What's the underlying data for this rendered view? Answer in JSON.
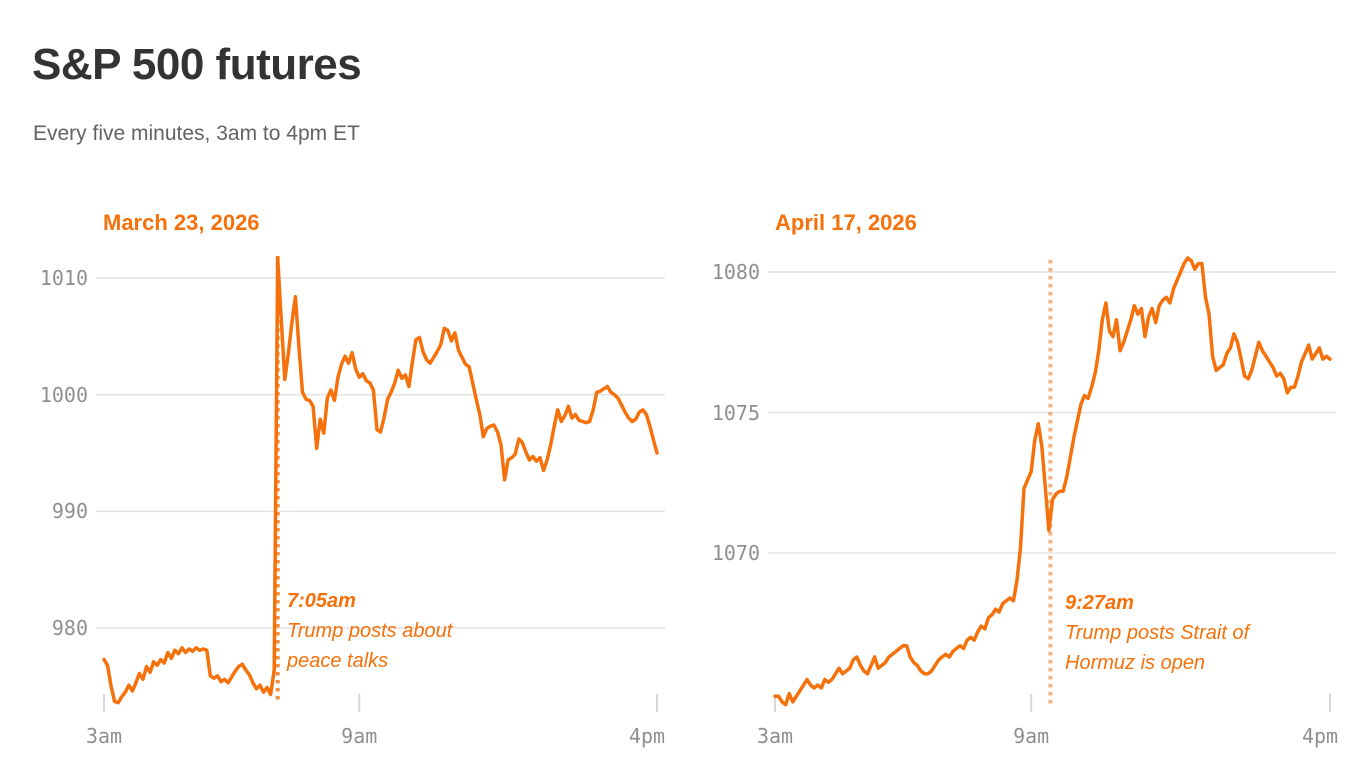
{
  "header": {
    "title": "S&P 500 futures",
    "subtitle": "Every five minutes, 3am to 4pm ET"
  },
  "colors": {
    "line": "#f5710b",
    "accent_text": "#f5710b",
    "axis_label": "#8f8f8f",
    "gridline": "#e4e4e4",
    "tick": "#d8d8d8",
    "title": "#333336",
    "subtitle": "#636363"
  },
  "chart_data": [
    {
      "type": "line",
      "title": "March 23, 2026",
      "x_start": "3am",
      "x_end": "4pm",
      "interval_minutes": 5,
      "ylim": [
        973,
        1013
      ],
      "y_ticks": [
        1010,
        1000,
        990,
        980
      ],
      "x_ticks": [
        {
          "label": "3am",
          "hours": 0
        },
        {
          "label": "9am",
          "hours": 6
        },
        {
          "label": "4pm",
          "hours": 13
        }
      ],
      "annotation": {
        "time": "7:05am",
        "lines": [
          "Trump posts about",
          "peace talks"
        ],
        "hours_from_start": 4.0833
      },
      "values": [
        977.3,
        976.8,
        975.0,
        973.7,
        973.6,
        974.1,
        974.5,
        975.1,
        974.6,
        975.3,
        976.1,
        975.6,
        976.7,
        976.2,
        977.1,
        976.8,
        977.3,
        977.0,
        977.9,
        977.4,
        978.1,
        977.8,
        978.3,
        977.9,
        978.2,
        978.0,
        978.3,
        978.1,
        978.2,
        978.1,
        975.9,
        975.7,
        975.9,
        975.4,
        975.6,
        975.3,
        975.8,
        976.3,
        976.7,
        976.9,
        976.4,
        976.0,
        975.3,
        974.8,
        975.1,
        974.5,
        974.9,
        974.3,
        976.4,
        1011.7,
        1006.5,
        1001.3,
        1003.5,
        1006.2,
        1008.4,
        1004.0,
        1000.2,
        999.6,
        999.5,
        999.0,
        995.4,
        997.9,
        996.7,
        999.7,
        1000.4,
        999.5,
        1001.5,
        1002.6,
        1003.3,
        1002.7,
        1003.6,
        1002.2,
        1001.5,
        1001.8,
        1001.2,
        1001.0,
        1000.4,
        997.0,
        996.8,
        998.0,
        999.6,
        1000.2,
        1001.0,
        1002.1,
        1001.4,
        1001.7,
        1000.7,
        1002.8,
        1004.7,
        1004.9,
        1003.7,
        1003.0,
        1002.7,
        1003.2,
        1003.7,
        1004.3,
        1005.7,
        1005.5,
        1004.6,
        1005.3,
        1003.8,
        1003.2,
        1002.6,
        1002.4,
        1001.0,
        999.6,
        998.3,
        996.4,
        997.1,
        997.3,
        997.4,
        996.8,
        995.7,
        992.7,
        994.4,
        994.6,
        994.9,
        996.2,
        995.9,
        995.1,
        994.4,
        994.7,
        994.3,
        994.6,
        993.5,
        994.4,
        995.7,
        997.3,
        998.7,
        997.7,
        998.2,
        999.0,
        998.0,
        998.3,
        997.8,
        997.7,
        997.6,
        997.7,
        998.7,
        1000.2,
        1000.3,
        1000.5,
        1000.7,
        1000.2,
        1000.0,
        999.7,
        999.1,
        998.5,
        998.0,
        997.7,
        997.9,
        998.5,
        998.7,
        998.3,
        997.3,
        996.1,
        995.0
      ]
    },
    {
      "type": "line",
      "title": "April 17, 2026",
      "x_start": "3am",
      "x_end": "4pm",
      "interval_minutes": 5,
      "ylim": [
        1064.5,
        1081
      ],
      "y_ticks": [
        1080,
        1075,
        1070
      ],
      "x_ticks": [
        {
          "label": "3am",
          "hours": 0
        },
        {
          "label": "9am",
          "hours": 6
        },
        {
          "label": "4pm",
          "hours": 13
        }
      ],
      "annotation": {
        "time": "9:27am",
        "lines": [
          "Trump posts Strait of",
          "Hormuz is open"
        ],
        "hours_from_start": 6.45
      },
      "values": [
        1064.9,
        1064.9,
        1064.7,
        1064.6,
        1065.0,
        1064.7,
        1064.9,
        1065.1,
        1065.3,
        1065.5,
        1065.3,
        1065.2,
        1065.3,
        1065.2,
        1065.5,
        1065.4,
        1065.5,
        1065.7,
        1065.9,
        1065.7,
        1065.8,
        1065.9,
        1066.2,
        1066.3,
        1066.0,
        1065.8,
        1065.7,
        1066.0,
        1066.3,
        1065.9,
        1066.0,
        1066.1,
        1066.3,
        1066.4,
        1066.5,
        1066.6,
        1066.7,
        1066.7,
        1066.3,
        1066.1,
        1066.0,
        1065.8,
        1065.7,
        1065.7,
        1065.8,
        1066.0,
        1066.2,
        1066.3,
        1066.4,
        1066.3,
        1066.5,
        1066.6,
        1066.7,
        1066.6,
        1066.9,
        1067.0,
        1066.9,
        1067.2,
        1067.4,
        1067.3,
        1067.7,
        1067.8,
        1068.0,
        1067.9,
        1068.2,
        1068.3,
        1068.4,
        1068.3,
        1069.0,
        1070.2,
        1072.3,
        1072.6,
        1072.9,
        1074.0,
        1074.6,
        1073.8,
        1072.3,
        1070.8,
        1071.9,
        1072.1,
        1072.2,
        1072.2,
        1072.7,
        1073.4,
        1074.1,
        1074.7,
        1075.3,
        1075.6,
        1075.5,
        1075.9,
        1076.4,
        1077.2,
        1078.3,
        1078.9,
        1077.9,
        1077.7,
        1078.3,
        1077.2,
        1077.5,
        1077.9,
        1078.3,
        1078.8,
        1078.5,
        1078.7,
        1077.7,
        1078.4,
        1078.7,
        1078.2,
        1078.8,
        1079.0,
        1079.1,
        1078.9,
        1079.4,
        1079.7,
        1080.0,
        1080.3,
        1080.5,
        1080.4,
        1080.1,
        1080.3,
        1080.3,
        1079.1,
        1078.5,
        1077.0,
        1076.5,
        1076.6,
        1076.7,
        1077.1,
        1077.3,
        1077.8,
        1077.5,
        1076.9,
        1076.3,
        1076.2,
        1076.5,
        1077.0,
        1077.5,
        1077.2,
        1077.0,
        1076.8,
        1076.6,
        1076.3,
        1076.4,
        1076.2,
        1075.7,
        1075.9,
        1075.9,
        1076.3,
        1076.8,
        1077.1,
        1077.4,
        1076.9,
        1077.1,
        1077.3,
        1076.9,
        1077.0,
        1076.9
      ]
    }
  ]
}
